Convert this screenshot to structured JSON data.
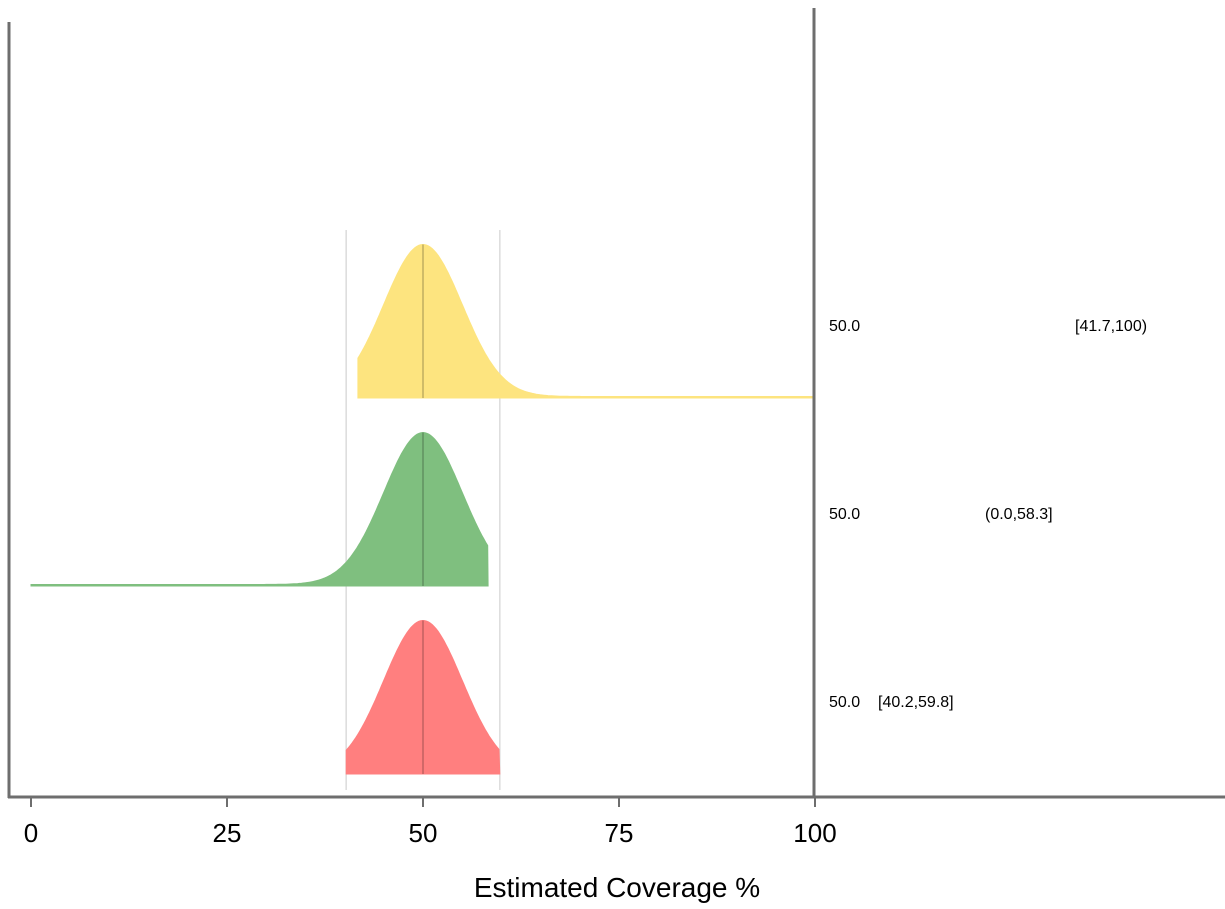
{
  "chart_data": {
    "type": "area",
    "title": "",
    "xlabel": "Estimated Coverage %",
    "ylabel": "",
    "xlim": [
      0,
      100
    ],
    "xticks": [
      "0",
      "25",
      "50",
      "75",
      "100"
    ],
    "xtick_values": [
      0,
      25,
      50,
      75,
      100
    ],
    "grid": false,
    "reference_lines": [
      40.2,
      59.8
    ],
    "series": [
      {
        "color": "#fde47f",
        "center": 50.0,
        "lower": 41.7,
        "upper": 100,
        "estimate_label": "50.0",
        "interval_label": "[41.7,100)"
      },
      {
        "color": "#7fbf7f",
        "center": 50.0,
        "lower": 0.0,
        "upper": 58.3,
        "estimate_label": "50.0",
        "interval_label": "(0.0,58.3]"
      },
      {
        "color": "#ff7f7f",
        "center": 50.0,
        "lower": 40.2,
        "upper": 59.8,
        "estimate_label": "50.0",
        "interval_label": "[40.2,59.8]"
      }
    ]
  }
}
